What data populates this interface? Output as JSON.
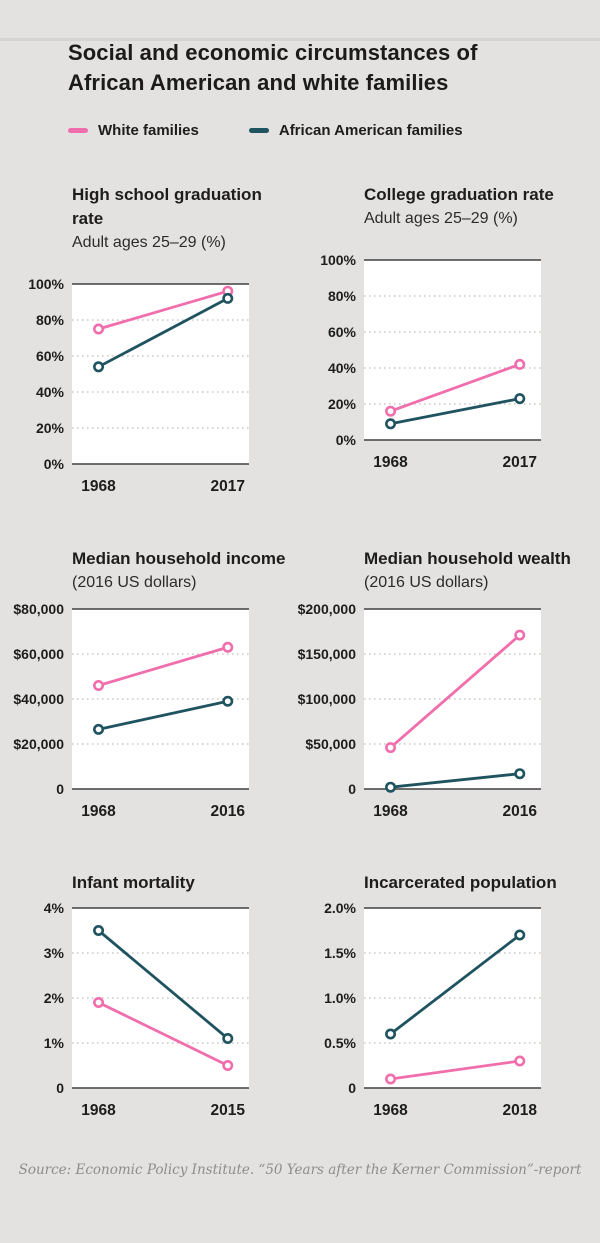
{
  "page": {
    "title_lines": [
      "Social and economic circumstances of",
      "African American and white families"
    ],
    "source": "Source: Economic Policy Institute. “50 Years after the Kerner Commission”-report",
    "background_color": "#e3e2e1"
  },
  "legend": {
    "items": [
      {
        "label": "White families",
        "color": "#f16eac"
      },
      {
        "label": "African American families",
        "color": "#1f5360"
      }
    ]
  },
  "colors": {
    "white_families": "#f16eac",
    "african_american_families": "#1f5360",
    "axis_solid": "#59595b",
    "grid_dotted": "#c1bfbd",
    "plot_background": "#ffffff"
  },
  "chart_data": [
    {
      "type": "line",
      "title": "High school graduation rate",
      "subtitle": "Adult ages 25–29 (%)",
      "categories": [
        "1968",
        "2017"
      ],
      "series": [
        {
          "name": "White families",
          "color": "#f16eac",
          "values": [
            75,
            96
          ]
        },
        {
          "name": "African American families",
          "color": "#1f5360",
          "values": [
            54,
            92
          ]
        }
      ],
      "ylim": [
        0,
        100
      ],
      "yticks": [
        0,
        20,
        40,
        60,
        80,
        100
      ],
      "ytick_labels": [
        "0%",
        "20%",
        "40%",
        "60%",
        "80%",
        "100%"
      ],
      "grid": "horizontal-dotted",
      "legend_position": "top-shared"
    },
    {
      "type": "line",
      "title": "College graduation rate",
      "subtitle": "Adult ages 25–29 (%)",
      "categories": [
        "1968",
        "2017"
      ],
      "series": [
        {
          "name": "White families",
          "color": "#f16eac",
          "values": [
            16,
            42
          ]
        },
        {
          "name": "African American families",
          "color": "#1f5360",
          "values": [
            9,
            23
          ]
        }
      ],
      "ylim": [
        0,
        100
      ],
      "yticks": [
        0,
        20,
        40,
        60,
        80,
        100
      ],
      "ytick_labels": [
        "0%",
        "20%",
        "40%",
        "60%",
        "80%",
        "100%"
      ],
      "grid": "horizontal-dotted",
      "legend_position": "top-shared"
    },
    {
      "type": "line",
      "title": "Median household income",
      "subtitle": "(2016 US dollars)",
      "categories": [
        "1968",
        "2016"
      ],
      "series": [
        {
          "name": "White families",
          "color": "#f16eac",
          "values": [
            46000,
            63000
          ]
        },
        {
          "name": "African American families",
          "color": "#1f5360",
          "values": [
            26500,
            39000
          ]
        }
      ],
      "ylim": [
        0,
        80000
      ],
      "yticks": [
        0,
        20000,
        40000,
        60000,
        80000
      ],
      "ytick_labels": [
        "0",
        "$20,000",
        "$40,000",
        "$60,000",
        "$80,000"
      ],
      "grid": "horizontal-dotted",
      "legend_position": "top-shared"
    },
    {
      "type": "line",
      "title": "Median household wealth",
      "subtitle": "(2016 US dollars)",
      "categories": [
        "1968",
        "2016"
      ],
      "series": [
        {
          "name": "White families",
          "color": "#f16eac",
          "values": [
            46000,
            171000
          ]
        },
        {
          "name": "African American families",
          "color": "#1f5360",
          "values": [
            2000,
            17000
          ]
        }
      ],
      "ylim": [
        0,
        200000
      ],
      "yticks": [
        0,
        50000,
        100000,
        150000,
        200000
      ],
      "ytick_labels": [
        "0",
        "$50,000",
        "$100,000",
        "$150,000",
        "$200,000"
      ],
      "grid": "horizontal-dotted",
      "legend_position": "top-shared"
    },
    {
      "type": "line",
      "title": "Infant mortality",
      "categories": [
        "1968",
        "2015"
      ],
      "series": [
        {
          "name": "White families",
          "color": "#f16eac",
          "values": [
            1.9,
            0.5
          ]
        },
        {
          "name": "African American families",
          "color": "#1f5360",
          "values": [
            3.5,
            1.1
          ]
        }
      ],
      "ylim": [
        0,
        4
      ],
      "yticks": [
        0,
        1,
        2,
        3,
        4
      ],
      "ytick_labels": [
        "0",
        "1%",
        "2%",
        "3%",
        "4%"
      ],
      "grid": "horizontal-dotted",
      "legend_position": "top-shared"
    },
    {
      "type": "line",
      "title": "Incarcerated population",
      "categories": [
        "1968",
        "2018"
      ],
      "series": [
        {
          "name": "White families",
          "color": "#f16eac",
          "values": [
            0.1,
            0.3
          ]
        },
        {
          "name": "African American families",
          "color": "#1f5360",
          "values": [
            0.6,
            1.7
          ]
        }
      ],
      "ylim": [
        0,
        2
      ],
      "yticks": [
        0,
        0.5,
        1.0,
        1.5,
        2.0
      ],
      "ytick_labels": [
        "0",
        "0.5%",
        "1.0%",
        "1.5%",
        "2.0%"
      ],
      "grid": "horizontal-dotted",
      "legend_position": "top-shared"
    }
  ]
}
